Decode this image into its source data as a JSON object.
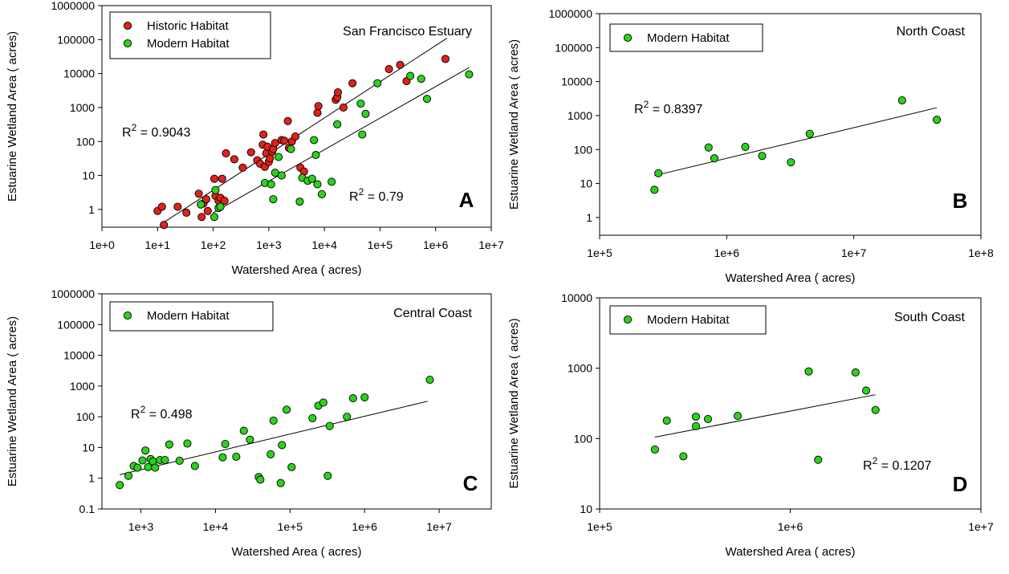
{
  "colors": {
    "historic": "#e32119",
    "modern": "#2bd31b",
    "axis": "#000000"
  },
  "xlabel": "Watershed Area (   acres)",
  "ylabel": "Estuarine Wetland Area (   acres)",
  "chart_data": [
    {
      "id": "A",
      "type": "scatter",
      "scale": "log",
      "title": "San Francisco Estuary",
      "panel_letter": "A",
      "xlabel": "Watershed Area (   acres)",
      "ylabel": "Estuarine Wetland Area (   acres)",
      "xlim": [
        1,
        10000000
      ],
      "ylim": [
        0.3,
        1000000
      ],
      "x_ticks": [
        "1e+0",
        "1e+1",
        "1e+2",
        "1e+3",
        "1e+4",
        "1e+5",
        "1e+6",
        "1e+7"
      ],
      "y_ticks": [
        "1",
        "10",
        "100",
        "1000",
        "10000",
        "100000",
        "1000000"
      ],
      "legend": [
        "Historic Habitat",
        "Modern Habitat"
      ],
      "annotations": [
        {
          "text": "R",
          "sup": "2",
          "rest": " = 0.9043"
        },
        {
          "text": "R",
          "sup": "2",
          "rest": " = 0.79"
        }
      ],
      "series": [
        {
          "name": "Historic Habitat",
          "color_key": "historic",
          "points": [
            [
              10,
              0.9
            ],
            [
              12,
              1.2
            ],
            [
              13,
              0.35
            ],
            [
              23,
              1.2
            ],
            [
              33,
              0.8
            ],
            [
              55,
              2.9
            ],
            [
              62,
              0.6
            ],
            [
              67,
              1.5
            ],
            [
              75,
              2
            ],
            [
              80,
              0.9
            ],
            [
              105,
              8
            ],
            [
              110,
              2.5
            ],
            [
              125,
              1.8
            ],
            [
              135,
              2.2
            ],
            [
              145,
              8
            ],
            [
              160,
              1.8
            ],
            [
              170,
              45
            ],
            [
              240,
              30
            ],
            [
              340,
              17
            ],
            [
              480,
              48
            ],
            [
              620,
              28
            ],
            [
              700,
              22
            ],
            [
              780,
              80
            ],
            [
              800,
              160
            ],
            [
              850,
              18
            ],
            [
              900,
              45
            ],
            [
              950,
              70
            ],
            [
              1000,
              25
            ],
            [
              1050,
              32
            ],
            [
              1150,
              50
            ],
            [
              1200,
              60
            ],
            [
              1300,
              90
            ],
            [
              1700,
              110
            ],
            [
              1900,
              105
            ],
            [
              2200,
              400
            ],
            [
              2300,
              65
            ],
            [
              2600,
              100
            ],
            [
              3000,
              140
            ],
            [
              3700,
              17
            ],
            [
              4300,
              13
            ],
            [
              7500,
              700
            ],
            [
              7800,
              1100
            ],
            [
              16000,
              1700
            ],
            [
              17000,
              2000
            ],
            [
              17500,
              2800
            ],
            [
              22000,
              1000
            ],
            [
              32000,
              5200
            ],
            [
              145000,
              13500
            ],
            [
              230000,
              18000
            ],
            [
              300000,
              6000
            ],
            [
              1500000,
              27000
            ]
          ]
        },
        {
          "name": "Modern Habitat",
          "color_key": "modern",
          "points": [
            [
              60,
              1.4
            ],
            [
              105,
              0.6
            ],
            [
              110,
              3.7
            ],
            [
              125,
              1.1
            ],
            [
              135,
              1.2
            ],
            [
              850,
              6
            ],
            [
              1100,
              5.5
            ],
            [
              1200,
              2
            ],
            [
              1300,
              12
            ],
            [
              1500,
              35
            ],
            [
              1700,
              10
            ],
            [
              2500,
              60
            ],
            [
              3600,
              1.7
            ],
            [
              4000,
              8.5
            ],
            [
              5000,
              7
            ],
            [
              6000,
              8
            ],
            [
              6500,
              110
            ],
            [
              7000,
              40
            ],
            [
              7500,
              5.5
            ],
            [
              9000,
              2.8
            ],
            [
              13500,
              6.5
            ],
            [
              17000,
              320
            ],
            [
              45000,
              1300
            ],
            [
              48000,
              160
            ],
            [
              55000,
              650
            ],
            [
              90000,
              5200
            ],
            [
              350000,
              8500
            ],
            [
              550000,
              7000
            ],
            [
              700000,
              1800
            ],
            [
              4000000,
              9500
            ]
          ]
        }
      ],
      "trendlines": [
        {
          "color_key": "axis",
          "from": [
            11,
            0.35
          ],
          "to": [
            1600000,
            110000
          ]
        },
        {
          "color_key": "axis",
          "from": [
            100,
            0.8
          ],
          "to": [
            4000000,
            15000
          ]
        }
      ]
    },
    {
      "id": "B",
      "type": "scatter",
      "scale": "log",
      "title": "North Coast",
      "panel_letter": "B",
      "xlabel": "Watershed Area (   acres)",
      "ylabel": "Estuarine Wetland Area (   acres)",
      "xlim": [
        100000,
        100000000
      ],
      "ylim": [
        0.3,
        1000000
      ],
      "x_ticks": [
        "1e+5",
        "1e+6",
        "1e+7",
        "1e+8"
      ],
      "y_ticks": [
        "1",
        "10",
        "100",
        "1000",
        "10000",
        "100000",
        "1000000"
      ],
      "legend": [
        "Modern Habitat"
      ],
      "annotations": [
        {
          "text": "R",
          "sup": "2",
          "rest": " = 0.8397"
        }
      ],
      "series": [
        {
          "name": "Modern Habitat",
          "color_key": "modern",
          "points": [
            [
              270000,
              6.5
            ],
            [
              290000,
              20
            ],
            [
              720000,
              115
            ],
            [
              800000,
              55
            ],
            [
              1400000,
              120
            ],
            [
              1900000,
              65
            ],
            [
              3200000,
              42
            ],
            [
              4500000,
              290
            ],
            [
              24000000,
              2800
            ],
            [
              45000000,
              750
            ]
          ]
        }
      ],
      "trendlines": [
        {
          "color_key": "axis",
          "from": [
            270000,
            17
          ],
          "to": [
            45000000,
            1700
          ]
        }
      ]
    },
    {
      "id": "C",
      "type": "scatter",
      "scale": "log",
      "title": "Central Coast",
      "panel_letter": "C",
      "xlabel": "Watershed Area (   acres)",
      "ylabel": "Estuarine Wetland Area (   acres)",
      "xlim": [
        300,
        50000000
      ],
      "ylim": [
        0.1,
        1000000
      ],
      "x_ticks": [
        "1e+3",
        "1e+4",
        "1e+5",
        "1e+6",
        "1e+7"
      ],
      "y_ticks": [
        "0.1",
        "1",
        "10",
        "100",
        "1000",
        "10000",
        "100000",
        "1000000"
      ],
      "legend": [
        "Modern Habitat"
      ],
      "annotations": [
        {
          "text": "R",
          "sup": "2",
          "rest": " = 0.498"
        }
      ],
      "series": [
        {
          "name": "Modern Habitat",
          "color_key": "modern",
          "points": [
            [
              520,
              0.6
            ],
            [
              680,
              1.2
            ],
            [
              800,
              2.5
            ],
            [
              900,
              2.2
            ],
            [
              1050,
              3.8
            ],
            [
              1150,
              8
            ],
            [
              1250,
              2.3
            ],
            [
              1350,
              4.2
            ],
            [
              1450,
              3.5
            ],
            [
              1550,
              2.2
            ],
            [
              1800,
              3.9
            ],
            [
              2100,
              3.9
            ],
            [
              2400,
              12.5
            ],
            [
              3300,
              3.7
            ],
            [
              4200,
              13.5
            ],
            [
              5300,
              2.5
            ],
            [
              12500,
              4.8
            ],
            [
              13500,
              13
            ],
            [
              19000,
              5
            ],
            [
              24000,
              35
            ],
            [
              29000,
              18
            ],
            [
              38000,
              1.1
            ],
            [
              40000,
              0.9
            ],
            [
              55000,
              6
            ],
            [
              60000,
              75
            ],
            [
              75000,
              0.7
            ],
            [
              78000,
              12
            ],
            [
              90000,
              170
            ],
            [
              105000,
              2.3
            ],
            [
              200000,
              90
            ],
            [
              240000,
              230
            ],
            [
              280000,
              290
            ],
            [
              320000,
              1.2
            ],
            [
              340000,
              50
            ],
            [
              580000,
              100
            ],
            [
              700000,
              400
            ],
            [
              1000000,
              430
            ],
            [
              7500000,
              1600
            ]
          ]
        }
      ],
      "trendlines": [
        {
          "color_key": "axis",
          "from": [
            520,
            1.3
          ],
          "to": [
            7000000,
            320
          ]
        }
      ]
    },
    {
      "id": "D",
      "type": "scatter",
      "scale": "log",
      "title": "South Coast",
      "panel_letter": "D",
      "xlabel": "Watershed Area (   acres)",
      "ylabel": "Estuarine Wetland Area (   acres)",
      "xlim": [
        100000,
        10000000
      ],
      "ylim": [
        10,
        10000
      ],
      "x_ticks": [
        "1e+5",
        "1e+6",
        "1e+7"
      ],
      "y_ticks": [
        "10",
        "100",
        "1000",
        "10000"
      ],
      "legend": [
        "Modern Habitat"
      ],
      "annotations": [
        {
          "text": "R",
          "sup": "2",
          "rest": " = 0.1207"
        }
      ],
      "series": [
        {
          "name": "Modern Habitat",
          "color_key": "modern",
          "points": [
            [
              195000,
              70
            ],
            [
              225000,
              180
            ],
            [
              275000,
              56
            ],
            [
              320000,
              205
            ],
            [
              320000,
              150
            ],
            [
              370000,
              190
            ],
            [
              530000,
              210
            ],
            [
              1250000,
              900
            ],
            [
              1400000,
              50
            ],
            [
              2200000,
              870
            ],
            [
              2500000,
              480
            ],
            [
              2800000,
              255
            ]
          ]
        }
      ],
      "trendlines": [
        {
          "color_key": "axis",
          "from": [
            195000,
            105
          ],
          "to": [
            2800000,
            420
          ]
        }
      ]
    }
  ]
}
